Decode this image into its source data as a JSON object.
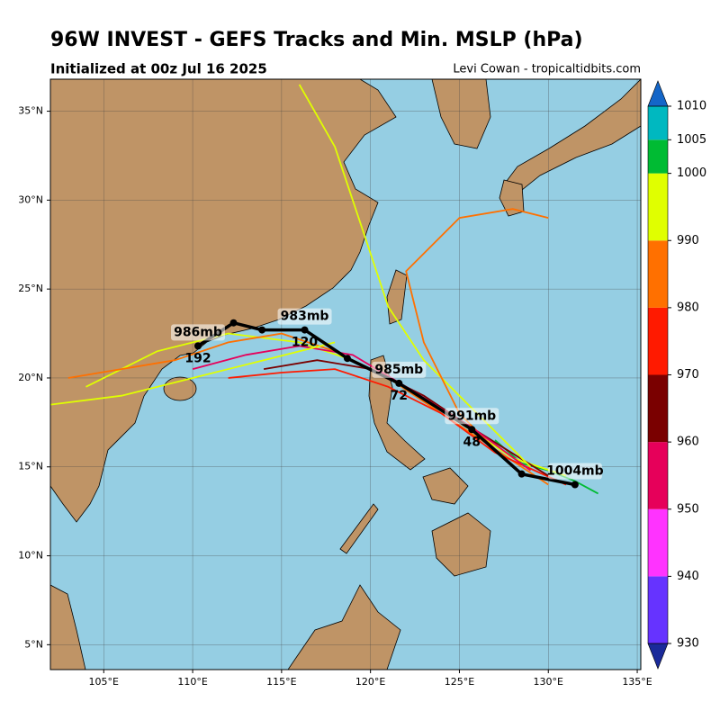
{
  "chart_data": {
    "type": "map",
    "title": "96W INVEST - GEFS Tracks and Min. MSLP (hPa)",
    "subtitle": "Initialized at 00z Jul 16 2025",
    "credit": "Levi Cowan - tropicaltidbits.com",
    "xlim": [
      102,
      135.2
    ],
    "ylim": [
      3.6,
      36.8
    ],
    "xticks": [
      {
        "value": 105,
        "label": "105°E"
      },
      {
        "value": 110,
        "label": "110°E"
      },
      {
        "value": 115,
        "label": "115°E"
      },
      {
        "value": 120,
        "label": "120°E"
      },
      {
        "value": 125,
        "label": "125°E"
      },
      {
        "value": 130,
        "label": "130°E"
      },
      {
        "value": 135,
        "label": "135°E"
      }
    ],
    "yticks": [
      {
        "value": 5,
        "label": "5°N"
      },
      {
        "value": 10,
        "label": "10°N"
      },
      {
        "value": 15,
        "label": "15°N"
      },
      {
        "value": 20,
        "label": "20°N"
      },
      {
        "value": 25,
        "label": "25°N"
      },
      {
        "value": 30,
        "label": "30°N"
      },
      {
        "value": 35,
        "label": "35°N"
      }
    ],
    "grid": true,
    "colorbar": {
      "levels": [
        930,
        940,
        950,
        960,
        970,
        980,
        990,
        1000,
        1005,
        1010
      ],
      "colors": [
        "#6633ff",
        "#ff33ff",
        "#e6005a",
        "#7a0000",
        "#ff1a00",
        "#ff7000",
        "#e0ff00",
        "#00bb33",
        "#00b8c0"
      ],
      "extend_colors": [
        "#1a2a9a",
        "#1466c8"
      ]
    },
    "mean_track": {
      "color": "#000000",
      "lon": [
        131.5,
        128.5,
        125.7,
        121.6,
        118.7,
        116.3,
        113.9,
        112.3,
        110.3
      ],
      "lat": [
        14.0,
        14.6,
        17.1,
        19.7,
        21.1,
        22.7,
        22.7,
        23.1,
        21.8
      ],
      "pressure_labels": [
        "1004mb",
        null,
        "991mb",
        "985mb",
        null,
        "983mb",
        null,
        null,
        "986mb"
      ],
      "hour_labels": [
        null,
        null,
        48,
        72,
        null,
        120,
        null,
        null,
        192
      ]
    },
    "members": [
      {
        "color": "#00bb33",
        "lon": [
          132.8,
          131.5,
          130,
          128.5,
          127
        ],
        "lat": [
          13.5,
          14.2,
          14.8,
          15.2,
          16.5
        ]
      },
      {
        "color": "#e0ff00",
        "lon": [
          131,
          128,
          125,
          122,
          119,
          116,
          112,
          108,
          104
        ],
        "lat": [
          14.5,
          15.5,
          17.5,
          19.5,
          21,
          22,
          22.5,
          21.5,
          19.5
        ]
      },
      {
        "color": "#ff7000",
        "lon": [
          130,
          127,
          124,
          121,
          118,
          115,
          112,
          109,
          106,
          103
        ],
        "lat": [
          14,
          16,
          18,
          20,
          21.5,
          22.5,
          22,
          21,
          20.5,
          20
        ]
      },
      {
        "color": "#ff1a00",
        "lon": [
          131,
          127,
          124,
          121,
          118,
          115,
          112
        ],
        "lat": [
          14,
          15.8,
          18,
          19.5,
          20.5,
          20.3,
          20
        ]
      },
      {
        "color": "#7a0000",
        "lon": [
          130,
          126,
          123,
          120,
          117,
          114
        ],
        "lat": [
          14.5,
          17,
          19,
          20.5,
          21,
          20.5
        ]
      },
      {
        "color": "#e0ff00",
        "lon": [
          129,
          126,
          123,
          121,
          120,
          119,
          118,
          116
        ],
        "lat": [
          15,
          18,
          21,
          24,
          27,
          30,
          33,
          36.5
        ]
      },
      {
        "color": "#ff7000",
        "lon": [
          128,
          125,
          123,
          122,
          125,
          128,
          130
        ],
        "lat": [
          15,
          18,
          22,
          26,
          29,
          29.5,
          29
        ]
      },
      {
        "color": "#e6005a",
        "lon": [
          129,
          126,
          122,
          119,
          116,
          113,
          110
        ],
        "lat": [
          14.8,
          17,
          19.5,
          21.3,
          21.8,
          21.3,
          20.5
        ]
      },
      {
        "color": "#e0ff00",
        "lon": [
          118,
          114,
          110,
          106,
          102
        ],
        "lat": [
          22,
          21,
          20,
          19,
          18.5
        ]
      }
    ]
  }
}
